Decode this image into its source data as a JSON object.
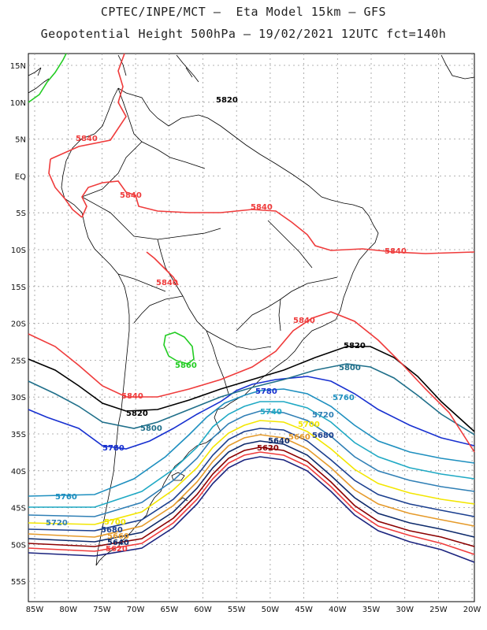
{
  "header": {
    "line1": "CPTEC/INPE/MCT –  Eta Model 15km – GFS",
    "line2": "Geopotential Height 500hPa – 19/02/2021 12UTC fct=140h"
  },
  "axes": {
    "lat_labels": [
      "15N",
      "10N",
      "5N",
      "EQ",
      "5S",
      "10S",
      "15S",
      "20S",
      "25S",
      "30S",
      "35S",
      "40S",
      "45S",
      "50S",
      "55S"
    ],
    "lon_labels": [
      "85W",
      "80W",
      "75W",
      "70W",
      "65W",
      "60W",
      "55W",
      "50W",
      "45W",
      "40W",
      "35W",
      "30W",
      "25W",
      "20W"
    ]
  },
  "colors": {
    "c5580": "#1a237e",
    "c5600": "#ef3b3b",
    "c5620": "#8b0000",
    "c5640": "#0d2a6b",
    "c5660": "#e59a2a",
    "c5680": "#1b3f8f",
    "c5700": "#f3e600",
    "c5720": "#2f7fb5",
    "c5740": "#1fa9c4",
    "c5760": "#1e8fbf",
    "c5780": "#1730d0",
    "c5800": "#1f6f8a",
    "c5820": "#000000",
    "c5840": "#ef3b3b",
    "c5860": "#22cc22"
  },
  "contours": {
    "c5620_label": "5620",
    "c5640_label": "5640",
    "c5660_label": "5660",
    "c5680_label": "5680",
    "c5700_label": "5700",
    "c5720_label": "5720",
    "c5740_label": "5740",
    "c5760_label": "5760",
    "c5780_label": "5780",
    "c5800_label": "5800",
    "c5820_label": "5820",
    "c5840_label": "5840",
    "c5860_label": "5860"
  }
}
